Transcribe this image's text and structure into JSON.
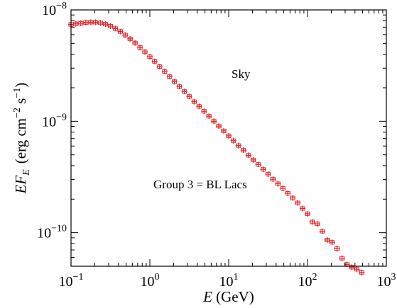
{
  "chart_data": {
    "type": "scatter",
    "title": "",
    "xlabel": {
      "symbol": "E",
      "unit": "(GeV)"
    },
    "ylabel": {
      "symbol": "EF",
      "sub": "E",
      "unit_open": "(erg cm",
      "exp1": "−2",
      "unit_mid": " s",
      "exp2": "−1",
      "unit_close": ")"
    },
    "xscale": "log",
    "yscale": "log",
    "xlim": [
      0.1,
      1000
    ],
    "ylim": [
      5e-11,
      1e-08
    ],
    "grid": false,
    "legend": "none",
    "x_ticks": [
      {
        "value": 0.1,
        "base": "10",
        "exp": "−1"
      },
      {
        "value": 1,
        "base": "10",
        "exp": "0"
      },
      {
        "value": 10,
        "base": "10",
        "exp": "1"
      },
      {
        "value": 100,
        "base": "10",
        "exp": "2"
      },
      {
        "value": 1000,
        "base": "10",
        "exp": "3"
      }
    ],
    "y_ticks": [
      {
        "value": 1e-10,
        "base": "10",
        "exp": "−10"
      },
      {
        "value": 1e-09,
        "base": "10",
        "exp": "−9"
      },
      {
        "value": 1e-08,
        "base": "10",
        "exp": "−8"
      }
    ],
    "annotations": [
      {
        "text": "Sky",
        "x": 38,
        "y": 3.2e-09
      },
      {
        "text": "Group 3 = BL Lacs",
        "x": 2.2,
        "y": 2.6e-10
      }
    ],
    "series": [
      {
        "color": "#e0282c",
        "marker": "open-square",
        "points": [
          [
            0.1,
            7.4e-09
          ],
          [
            0.115,
            7.5e-09
          ],
          [
            0.133,
            7.6e-09
          ],
          [
            0.154,
            7.7e-09
          ],
          [
            0.178,
            7.75e-09
          ],
          [
            0.205,
            7.75e-09
          ],
          [
            0.237,
            7.65e-09
          ],
          [
            0.274,
            7.45e-09
          ],
          [
            0.316,
            7.15e-09
          ],
          [
            0.365,
            6.8e-09
          ],
          [
            0.422,
            6.4e-09
          ],
          [
            0.487,
            5.95e-09
          ],
          [
            0.562,
            5.5e-09
          ],
          [
            0.649,
            5.05e-09
          ],
          [
            0.75,
            4.6e-09
          ],
          [
            0.866,
            4.2e-09
          ],
          [
            1.0,
            3.8e-09
          ],
          [
            1.15,
            3.45e-09
          ],
          [
            1.33,
            3.1e-09
          ],
          [
            1.54,
            2.8e-09
          ],
          [
            1.78,
            2.52e-09
          ],
          [
            2.05,
            2.27e-09
          ],
          [
            2.37,
            2.05e-09
          ],
          [
            2.74,
            1.85e-09
          ],
          [
            3.16,
            1.67e-09
          ],
          [
            3.65,
            1.5e-09
          ],
          [
            4.22,
            1.36e-09
          ],
          [
            4.87,
            1.23e-09
          ],
          [
            5.62,
            1.11e-09
          ],
          [
            6.49,
            1e-09
          ],
          [
            7.5,
            9.05e-10
          ],
          [
            8.66,
            8.2e-10
          ],
          [
            10.0,
            7.4e-10
          ],
          [
            11.5,
            6.7e-10
          ],
          [
            13.3,
            6.05e-10
          ],
          [
            15.4,
            5.5e-10
          ],
          [
            17.8,
            4.95e-10
          ],
          [
            20.5,
            4.5e-10
          ],
          [
            23.7,
            4.1e-10
          ],
          [
            27.4,
            3.7e-10
          ],
          [
            31.6,
            3.35e-10
          ],
          [
            36.5,
            3.02e-10
          ],
          [
            42.2,
            2.75e-10
          ],
          [
            48.7,
            2.5e-10
          ],
          [
            56.2,
            2.26e-10
          ],
          [
            64.9,
            2.05e-10
          ],
          [
            75.0,
            1.85e-10
          ],
          [
            86.6,
            1.65e-10
          ],
          [
            100,
            1.48e-10
          ],
          [
            115,
            1.25e-10
          ],
          [
            133,
            1.2e-10
          ],
          [
            154,
            1.03e-10
          ],
          [
            178,
            8.6e-11
          ],
          [
            205,
            8.2e-11
          ],
          [
            237,
            7.2e-11
          ],
          [
            274,
            5.9e-11
          ],
          [
            316,
            5.2e-11
          ],
          [
            365,
            4.9e-11
          ],
          [
            422,
            4.7e-11
          ],
          [
            487,
            4.4e-11
          ]
        ],
        "pointsNote": ""
      }
    ]
  }
}
